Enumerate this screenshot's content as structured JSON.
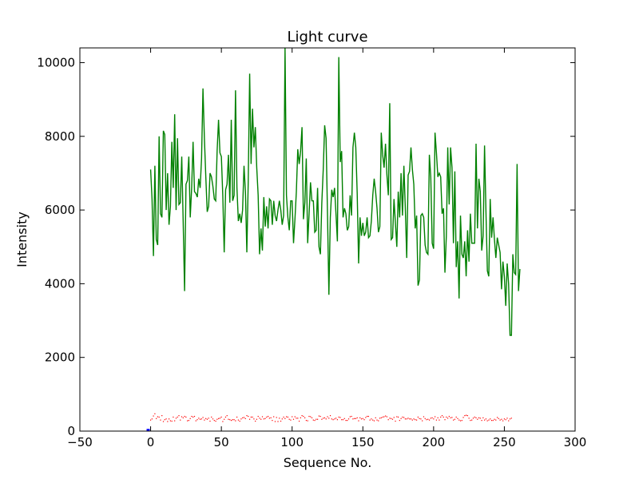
{
  "chart_data": {
    "type": "line",
    "title": "Light curve",
    "xlabel": "Sequence No.",
    "ylabel": "Intensity",
    "xlim": [
      -50,
      300
    ],
    "ylim": [
      0,
      10400
    ],
    "xticks": [
      -50,
      0,
      50,
      100,
      150,
      200,
      250,
      300
    ],
    "xtick_labels": [
      "−50",
      "0",
      "50",
      "100",
      "150",
      "200",
      "250",
      "300"
    ],
    "yticks": [
      0,
      2000,
      4000,
      6000,
      8000,
      10000
    ],
    "ytick_labels": [
      "0",
      "2000",
      "4000",
      "6000",
      "8000",
      "10000"
    ],
    "grid": false,
    "legend": false,
    "series": [
      {
        "type": "line",
        "color": "#008000",
        "x_start": 0,
        "values": [
          7100,
          6300,
          4750,
          7200,
          5200,
          5050,
          8000,
          5900,
          5800,
          8150,
          8050,
          6000,
          7000,
          5600,
          6100,
          7850,
          6600,
          8600,
          6000,
          7950,
          6150,
          6200,
          7450,
          5700,
          3800,
          6700,
          6800,
          7450,
          5800,
          6600,
          7850,
          6500,
          6450,
          6350,
          6850,
          6600,
          7400,
          9300,
          7950,
          6900,
          5950,
          6100,
          7000,
          6900,
          6650,
          6300,
          6250,
          7600,
          8450,
          7550,
          7450,
          6400,
          4850,
          6550,
          6700,
          7500,
          6200,
          8450,
          6250,
          6400,
          9250,
          6600,
          5700,
          5900,
          5650,
          6000,
          7200,
          6500,
          4850,
          6800,
          9700,
          7250,
          8750,
          7700,
          8250,
          7150,
          6400,
          4800,
          5500,
          4900,
          6350,
          5550,
          6100,
          5500,
          6300,
          6250,
          5600,
          6250,
          5850,
          5700,
          6000,
          6250,
          6000,
          5600,
          5850,
          10400,
          6400,
          5800,
          5450,
          6250,
          6250,
          5100,
          5750,
          6500,
          7650,
          7250,
          7600,
          8250,
          5750,
          6200,
          7400,
          5100,
          5900,
          6750,
          6250,
          6250,
          5400,
          5450,
          6600,
          5000,
          4800,
          6200,
          7100,
          8300,
          7950,
          5900,
          3700,
          5800,
          6550,
          6350,
          6600,
          5900,
          5150,
          10150,
          7300,
          7600,
          5800,
          6050,
          5900,
          5450,
          5550,
          6400,
          5850,
          7700,
          8100,
          7700,
          6450,
          4550,
          5800,
          5300,
          5650,
          5300,
          5400,
          5800,
          5250,
          5300,
          5700,
          6400,
          6850,
          6500,
          6050,
          5400,
          5550,
          8100,
          7500,
          7150,
          7800,
          6950,
          6400,
          8900,
          5200,
          5250,
          6300,
          5650,
          5000,
          6500,
          5800,
          7000,
          5850,
          7200,
          6050,
          4700,
          6950,
          7050,
          7700,
          7100,
          6700,
          5500,
          5850,
          3950,
          4100,
          5850,
          5900,
          5800,
          5050,
          4850,
          4800,
          7500,
          6900,
          5100,
          4950,
          8100,
          7550,
          6900,
          7000,
          6900,
          5900,
          6050,
          4300,
          5300,
          7700,
          6150,
          7700,
          7150,
          5100,
          7050,
          4450,
          5150,
          3600,
          5850,
          4800,
          4700,
          5150,
          4200,
          5450,
          4600,
          5900,
          5100,
          5100,
          5100,
          7800,
          5500,
          6850,
          6500,
          4900,
          5300,
          7750,
          5950,
          4350,
          4200,
          6300,
          5250,
          5800,
          5200,
          4700,
          5250,
          5050,
          4850,
          3850,
          4600,
          4200,
          3400,
          4550,
          4000,
          2600,
          2600,
          4800,
          4300,
          4250,
          7250,
          3800,
          4400
        ]
      },
      {
        "type": "scatter",
        "color": "#ff0000",
        "x_start": 0,
        "values": [
          300,
          330,
          410,
          470,
          340,
          390,
          380,
          300,
          420,
          260,
          310,
          330,
          260,
          330,
          280,
          270,
          380,
          280,
          350,
          380,
          420,
          300,
          390,
          360,
          400,
          380,
          280,
          290,
          340,
          400,
          380,
          400,
          280,
          310,
          350,
          320,
          330,
          370,
          300,
          340,
          320,
          350,
          270,
          380,
          330,
          290,
          270,
          320,
          340,
          350,
          380,
          260,
          320,
          380,
          420,
          320,
          310,
          290,
          310,
          310,
          280,
          380,
          300,
          270,
          330,
          360,
          370,
          340,
          420,
          400,
          320,
          380,
          380,
          330,
          270,
          320,
          400,
          350,
          320,
          390,
          330,
          340,
          380,
          400,
          350,
          360,
          290,
          390,
          260,
          370,
          260,
          350,
          270,
          330,
          380,
          340,
          390,
          380,
          320,
          300,
          390,
          320,
          390,
          350,
          350,
          270,
          360,
          420,
          400,
          360,
          290,
          280,
          400,
          390,
          360,
          300,
          290,
          320,
          320,
          410,
          400,
          320,
          350,
          360,
          330,
          390,
          350,
          420,
          330,
          310,
          330,
          350,
          310,
          380,
          370,
          310,
          310,
          340,
          290,
          290,
          330,
          390,
          400,
          330,
          340,
          340,
          360,
          280,
          360,
          330,
          340,
          310,
          370,
          400,
          400,
          300,
          330,
          300,
          280,
          360,
          300,
          280,
          350,
          360,
          380,
          390,
          410,
          390,
          310,
          350,
          340,
          320,
          370,
          270,
          390,
          380,
          290,
          340,
          380,
          370,
          330,
          330,
          350,
          330,
          330,
          300,
          330,
          310,
          300,
          380,
          340,
          330,
          280,
          390,
          340,
          310,
          320,
          300,
          350,
          360,
          330,
          390,
          300,
          360,
          300,
          380,
          420,
          380,
          310,
          380,
          350,
          400,
          360,
          370,
          300,
          320,
          380,
          340,
          300,
          280,
          290,
          370,
          420,
          430,
          420,
          350,
          290,
          300,
          350,
          380,
          360,
          320,
          360,
          350,
          290,
          360,
          300,
          330,
          280,
          300,
          330,
          290,
          290,
          320,
          300,
          370,
          340,
          300,
          320,
          280,
          330,
          310,
          350,
          280,
          330,
          350
        ]
      },
      {
        "type": "bar",
        "color": "#0000ff",
        "x": [
          -2
        ],
        "values": [
          60
        ]
      }
    ]
  }
}
